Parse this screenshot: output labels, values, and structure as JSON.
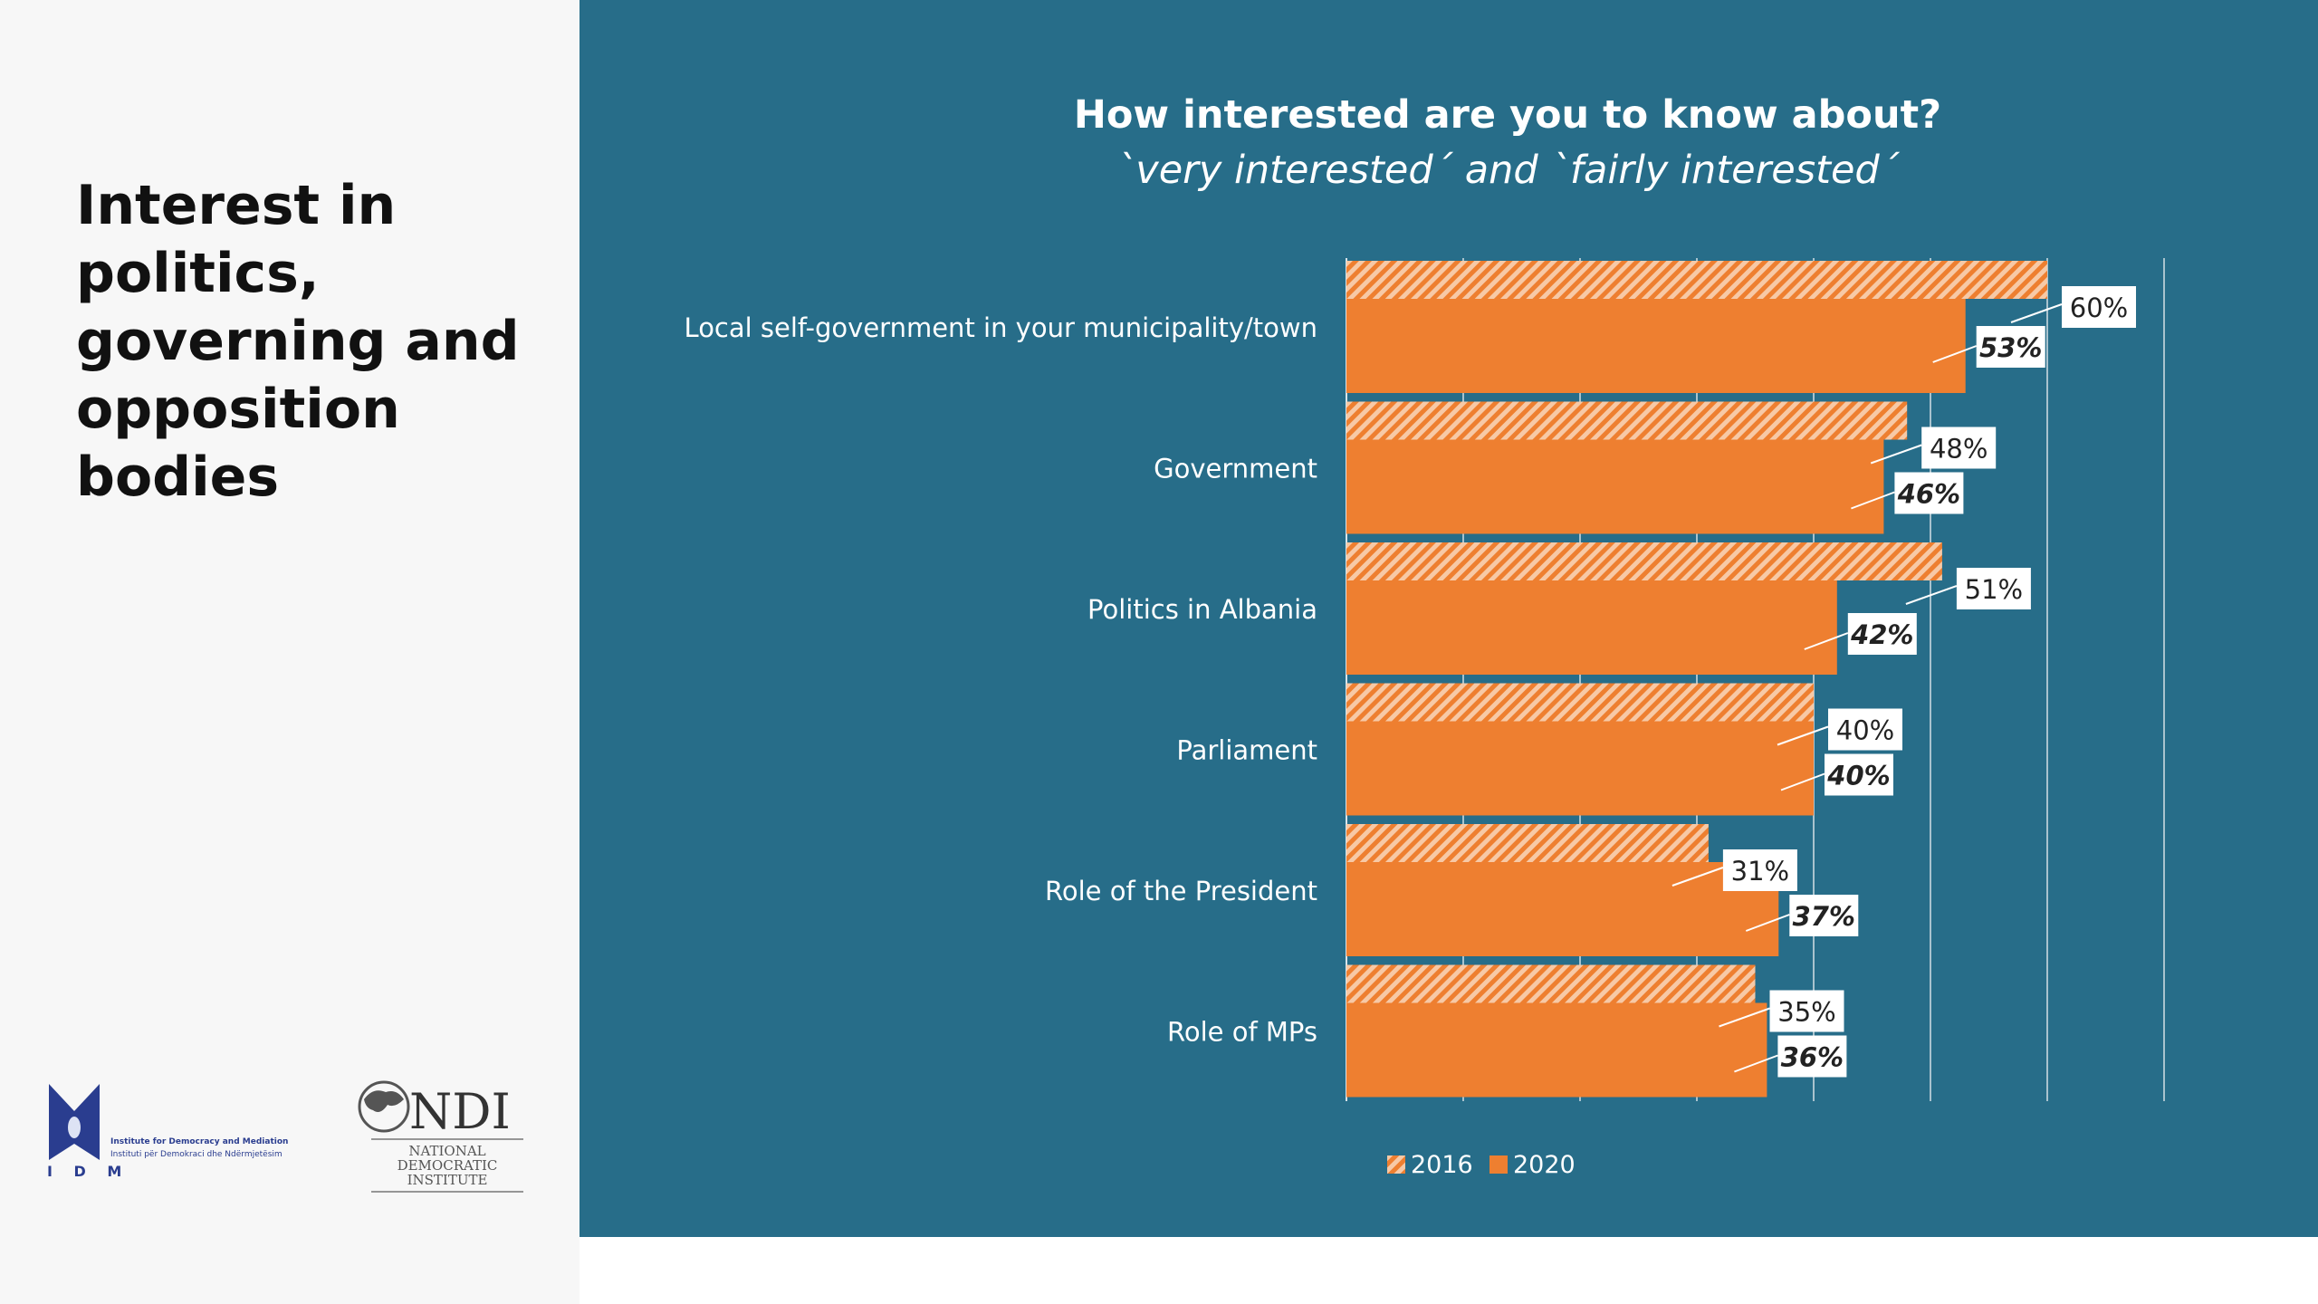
{
  "slide": {
    "title": "Interest in politics, governing and opposition bodies"
  },
  "logos": {
    "idm": {
      "mark": "I D M",
      "line1": "Institute for Democracy and Mediation",
      "line2": "Instituti për Demokraci dhe Ndërmjetësim"
    },
    "ndi": {
      "mark": "NDI",
      "line1": "NATIONAL",
      "line2": "DEMOCRATIC",
      "line3": "INSTITUTE"
    }
  },
  "colors": {
    "panel_bg": "#276d89",
    "bar_2020": "#ee7f30",
    "bar_2016_hatch": "#ee7f30",
    "gridline": "#a9c3ce",
    "label_box": "#ffffff"
  },
  "chart_data": {
    "type": "bar",
    "orientation": "horizontal",
    "title": "How interested are you to know about?",
    "subtitle": "`very interested´ and `fairly interested´",
    "categories": [
      "Local self-government in your municipality/town",
      "Government",
      "Politics in Albania",
      "Parliament",
      "Role of the President",
      "Role of MPs"
    ],
    "series": [
      {
        "name": "2016",
        "style": "hatched",
        "values": [
          60,
          48,
          51,
          40,
          31,
          35
        ],
        "labels": [
          "60%",
          "48%",
          "51%",
          "40%",
          "31%",
          "35%"
        ]
      },
      {
        "name": "2020",
        "style": "solid",
        "values": [
          53,
          46,
          42,
          40,
          37,
          36
        ],
        "labels": [
          "53%",
          "46%",
          "42%",
          "40%",
          "37%",
          "36%"
        ]
      }
    ],
    "xlim": [
      0,
      70
    ],
    "grid": true,
    "legend": "bottom-left"
  }
}
